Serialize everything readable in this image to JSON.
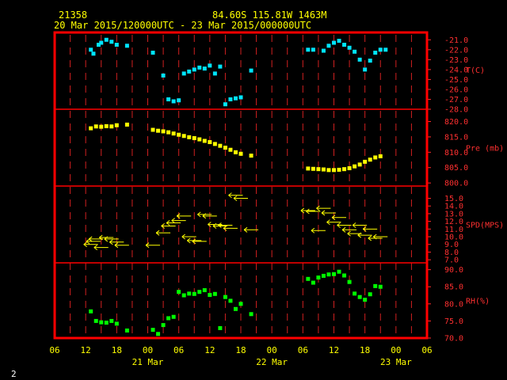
{
  "header": {
    "station": "21358",
    "coords": "84.60S  115.81W  1463M",
    "range": "20 Mar 2015/120000UTC - 23 Mar 2015/000000UTC"
  },
  "footer": {
    "page": "2"
  },
  "colors": {
    "frame": "#ff0000",
    "temp": "#00e5ff",
    "pres": "#ffff00",
    "wind": "#ffff00",
    "rh": "#00ff00",
    "axis": "#ff3030"
  },
  "chart_data": {
    "type": "scatter",
    "x_axis": {
      "unit": "hours since 20 Mar 2015 06 UTC",
      "range": [
        0,
        72
      ],
      "ticks": [
        {
          "x": 0,
          "label": "06"
        },
        {
          "x": 6,
          "label": "12"
        },
        {
          "x": 12,
          "label": "18"
        },
        {
          "x": 18,
          "label": "00"
        },
        {
          "x": 24,
          "label": "06"
        },
        {
          "x": 30,
          "label": "12"
        },
        {
          "x": 36,
          "label": "18"
        },
        {
          "x": 42,
          "label": "00"
        },
        {
          "x": 48,
          "label": "06"
        },
        {
          "x": 54,
          "label": "12"
        },
        {
          "x": 60,
          "label": "18"
        },
        {
          "x": 66,
          "label": "00"
        },
        {
          "x": 72,
          "label": "06"
        }
      ],
      "day_labels": [
        {
          "x": 18,
          "label": "21 Mar"
        },
        {
          "x": 42,
          "label": "22 Mar"
        },
        {
          "x": 66,
          "label": "23 Mar"
        }
      ]
    },
    "panels": [
      {
        "id": "temp",
        "label": "T(C)",
        "range": [
          -28,
          -20.5
        ],
        "ticks": [
          "-21.0",
          "-22.0",
          "-23.0",
          "-24.0",
          "-25.0",
          "-26.0",
          "-27.0",
          "-28.0"
        ],
        "tick_values": [
          -21,
          -22,
          -23,
          -24,
          -25,
          -26,
          -27,
          -28
        ],
        "points": [
          [
            7,
            -22.0
          ],
          [
            7.5,
            -22.4
          ],
          [
            8.5,
            -21.5
          ],
          [
            9,
            -21.3
          ],
          [
            10,
            -21.0
          ],
          [
            11,
            -21.2
          ],
          [
            12,
            -21.5
          ],
          [
            14,
            -21.6
          ],
          [
            19,
            -22.3
          ],
          [
            21,
            -24.6
          ],
          [
            22,
            -27.0
          ],
          [
            23,
            -27.2
          ],
          [
            24,
            -27.1
          ],
          [
            25,
            -24.4
          ],
          [
            26,
            -24.2
          ],
          [
            27,
            -24.0
          ],
          [
            28,
            -23.8
          ],
          [
            29,
            -23.9
          ],
          [
            30,
            -23.6
          ],
          [
            31,
            -24.4
          ],
          [
            32,
            -23.7
          ],
          [
            33,
            -27.5
          ],
          [
            34,
            -27.0
          ],
          [
            35,
            -26.9
          ],
          [
            36,
            -26.8
          ],
          [
            38,
            -24.1
          ],
          [
            49,
            -22.0
          ],
          [
            50,
            -22.0
          ],
          [
            52,
            -22.1
          ],
          [
            53,
            -21.6
          ],
          [
            54,
            -21.3
          ],
          [
            55,
            -21.1
          ],
          [
            56,
            -21.5
          ],
          [
            57,
            -21.8
          ],
          [
            58,
            -22.2
          ],
          [
            59,
            -23.0
          ],
          [
            60,
            -24.0
          ],
          [
            61,
            -23.1
          ],
          [
            62,
            -22.3
          ],
          [
            63,
            -22.0
          ],
          [
            64,
            -22.0
          ]
        ]
      },
      {
        "id": "pres",
        "label": "Pre (mb)",
        "range": [
          799,
          824
        ],
        "ticks": [
          "820.0",
          "815.0",
          "810.0",
          "805.0",
          "800.0"
        ],
        "tick_values": [
          820,
          815,
          810,
          805,
          800
        ],
        "points": [
          [
            7,
            817.8
          ],
          [
            8,
            818.4
          ],
          [
            9,
            818.3
          ],
          [
            10,
            818.5
          ],
          [
            11,
            818.4
          ],
          [
            12,
            818.8
          ],
          [
            14,
            819.0
          ],
          [
            19,
            817.3
          ],
          [
            20,
            817.0
          ],
          [
            21,
            816.8
          ],
          [
            22,
            816.5
          ],
          [
            23,
            816.1
          ],
          [
            24,
            815.7
          ],
          [
            25,
            815.3
          ],
          [
            26,
            814.9
          ],
          [
            27,
            814.6
          ],
          [
            28,
            814.2
          ],
          [
            29,
            813.7
          ],
          [
            30,
            813.3
          ],
          [
            31,
            812.7
          ],
          [
            32,
            812.1
          ],
          [
            33,
            811.5
          ],
          [
            34,
            810.8
          ],
          [
            35,
            810.0
          ],
          [
            36,
            809.5
          ],
          [
            38,
            808.9
          ],
          [
            49,
            804.7
          ],
          [
            50,
            804.6
          ],
          [
            51,
            804.5
          ],
          [
            52,
            804.4
          ],
          [
            53,
            804.2
          ],
          [
            54,
            804.2
          ],
          [
            55,
            804.3
          ],
          [
            56,
            804.5
          ],
          [
            57,
            804.8
          ],
          [
            58,
            805.4
          ],
          [
            59,
            806.0
          ],
          [
            60,
            806.9
          ],
          [
            61,
            807.6
          ],
          [
            62,
            808.3
          ],
          [
            63,
            808.7
          ]
        ]
      },
      {
        "id": "wind",
        "label": "SPD(MPS)",
        "range": [
          6.6,
          16.6
        ],
        "ticks": [
          "15.0",
          "14.0",
          "13.0",
          "12.0",
          "11.0",
          "10.0",
          "9.0",
          "8.0",
          "7.0"
        ],
        "tick_values": [
          15,
          14,
          13,
          12,
          11,
          10,
          9,
          8,
          7
        ],
        "points": [
          [
            7,
            9.0
          ],
          [
            7.5,
            9.4
          ],
          [
            8,
            9.7
          ],
          [
            9,
            8.6
          ],
          [
            10,
            9.9
          ],
          [
            11,
            9.7
          ],
          [
            12,
            9.3
          ],
          [
            13,
            8.9
          ],
          [
            19,
            8.9
          ],
          [
            21,
            10.5
          ],
          [
            22,
            11.4
          ],
          [
            23,
            11.8
          ],
          [
            24,
            12.1
          ],
          [
            25,
            12.7
          ],
          [
            26,
            10.0
          ],
          [
            27,
            9.5
          ],
          [
            28,
            9.4
          ],
          [
            29,
            12.9
          ],
          [
            30,
            12.7
          ],
          [
            31,
            11.6
          ],
          [
            32,
            11.4
          ],
          [
            33,
            11.5
          ],
          [
            34,
            11.1
          ],
          [
            35,
            15.4
          ],
          [
            36,
            15.0
          ],
          [
            38,
            10.9
          ],
          [
            49,
            13.4
          ],
          [
            50,
            13.3
          ],
          [
            51,
            10.8
          ],
          [
            52,
            13.7
          ],
          [
            53,
            13.1
          ],
          [
            54,
            11.9
          ],
          [
            55,
            12.5
          ],
          [
            56,
            11.5
          ],
          [
            57,
            10.9
          ],
          [
            58,
            10.4
          ],
          [
            59,
            11.5
          ],
          [
            60,
            10.2
          ],
          [
            61,
            11.0
          ],
          [
            62,
            9.8
          ],
          [
            63,
            10.0
          ]
        ]
      },
      {
        "id": "rh",
        "label": "RH(%)",
        "range": [
          70,
          92
        ],
        "ticks": [
          "90.0",
          "85.0",
          "80.0",
          "75.0",
          "70.0"
        ],
        "tick_values": [
          90,
          85,
          80,
          75,
          70
        ],
        "points": [
          [
            7,
            77.8
          ],
          [
            8,
            75.0
          ],
          [
            9,
            74.6
          ],
          [
            10,
            74.5
          ],
          [
            11,
            75.0
          ],
          [
            12,
            74.2
          ],
          [
            14,
            72.2
          ],
          [
            19,
            72.4
          ],
          [
            20,
            71.2
          ],
          [
            21,
            73.8
          ],
          [
            22,
            75.8
          ],
          [
            23,
            76.2
          ],
          [
            24,
            83.5
          ],
          [
            25,
            82.5
          ],
          [
            26,
            83.0
          ],
          [
            27,
            82.9
          ],
          [
            28,
            83.5
          ],
          [
            29,
            84.0
          ],
          [
            30,
            82.6
          ],
          [
            31,
            82.9
          ],
          [
            32,
            72.9
          ],
          [
            33,
            82.0
          ],
          [
            34,
            80.9
          ],
          [
            35,
            78.5
          ],
          [
            36,
            80.0
          ],
          [
            38,
            77.0
          ],
          [
            49,
            87.3
          ],
          [
            50,
            86.2
          ],
          [
            51,
            87.7
          ],
          [
            52,
            88.2
          ],
          [
            53,
            88.6
          ],
          [
            54,
            88.7
          ],
          [
            55,
            89.4
          ],
          [
            56,
            88.3
          ],
          [
            57,
            86.4
          ],
          [
            58,
            83.0
          ],
          [
            59,
            82.0
          ],
          [
            60,
            81.2
          ],
          [
            61,
            82.8
          ],
          [
            62,
            85.2
          ],
          [
            63,
            85.0
          ]
        ]
      }
    ]
  }
}
